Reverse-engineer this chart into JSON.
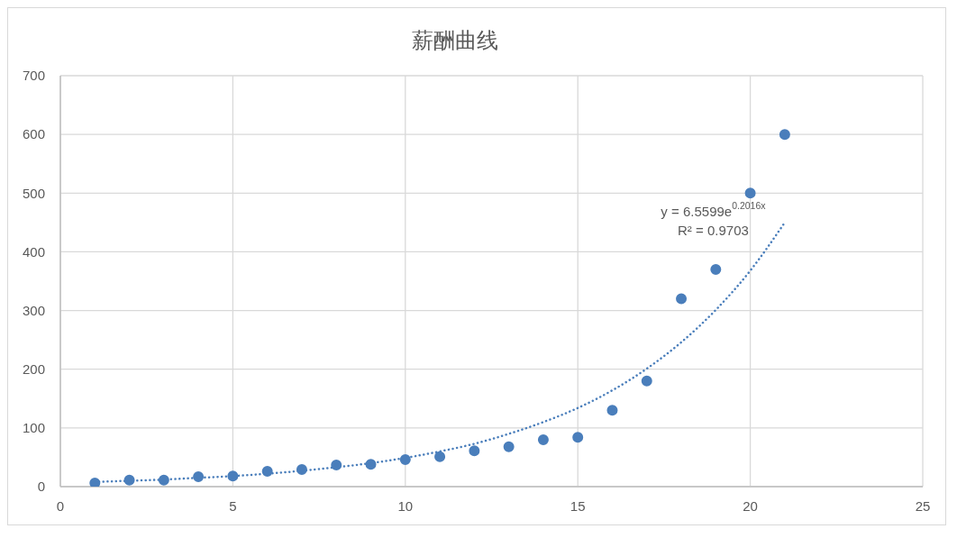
{
  "chart_data": {
    "type": "scatter",
    "title": "薪酬曲线",
    "x": [
      1,
      2,
      3,
      4,
      5,
      6,
      7,
      8,
      9,
      10,
      11,
      12,
      13,
      14,
      15,
      16,
      17,
      18,
      19,
      20,
      21
    ],
    "series": [
      {
        "color": "#4a7ebb",
        "marker": "circle",
        "values": [
          6,
          11,
          11,
          17,
          18,
          26,
          29,
          37,
          38,
          46,
          51,
          61,
          68,
          80,
          84,
          130,
          180,
          320,
          370,
          500,
          600
        ]
      },
      {
        "type": "line",
        "color": "#4a7ebb",
        "marker": "none",
        "line_style": "dotted",
        "x": [
          1,
          2,
          3,
          4,
          5,
          6,
          7,
          8,
          9,
          10,
          11,
          12,
          13,
          14,
          15,
          16,
          17,
          18,
          19,
          20,
          21
        ],
        "values": [
          8,
          10,
          12,
          15,
          18,
          22,
          27,
          33,
          40,
          49,
          60,
          73,
          90,
          110,
          134,
          164,
          201,
          246,
          301,
          368,
          450
        ]
      }
    ],
    "xlim": [
      0,
      25
    ],
    "ylim": [
      0,
      700
    ],
    "xticks": [
      0,
      5,
      10,
      15,
      20,
      25
    ],
    "yticks": [
      0,
      100,
      200,
      300,
      400,
      500,
      600,
      700
    ],
    "grid": true,
    "annotations": [
      "y = 6.5599e$^{0.2016x}$",
      "R² = 0.9703"
    ]
  }
}
